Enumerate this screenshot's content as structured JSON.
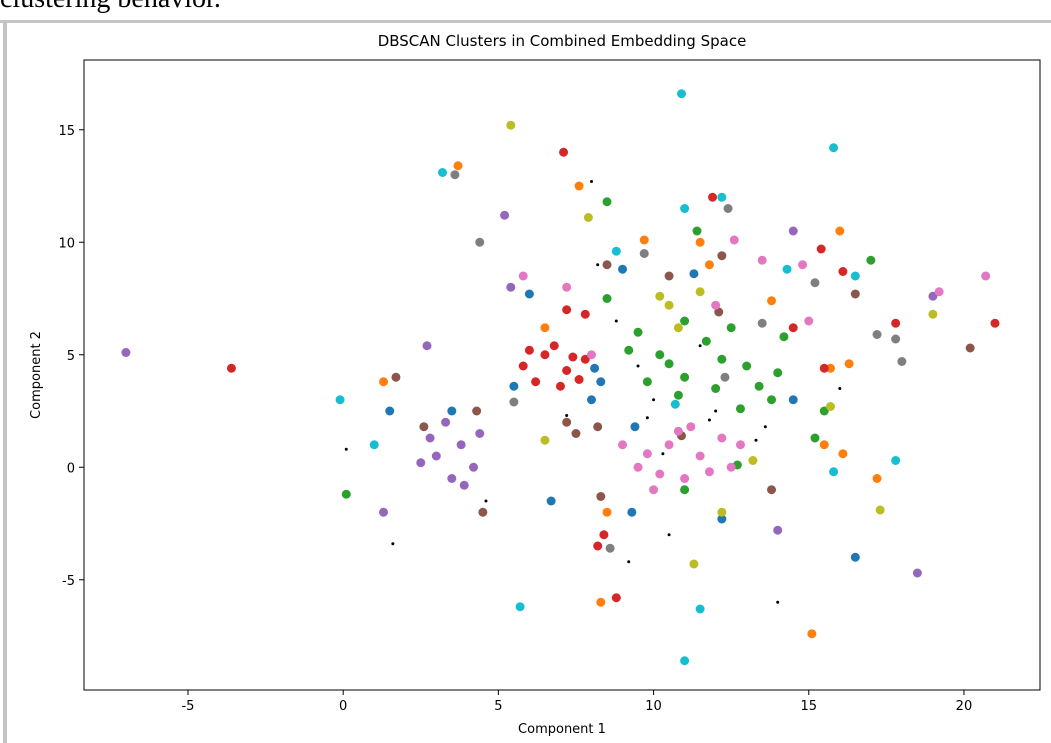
{
  "caption": "clustering behavior.",
  "chart_data": {
    "type": "scatter",
    "title": "DBSCAN Clusters in Combined Embedding Space",
    "x_label": "Component 1",
    "y_label": "Component 2",
    "xlim": [
      -8.35,
      22.45
    ],
    "ylim": [
      -9.9,
      18.1
    ],
    "xticks": [
      -5,
      0,
      5,
      10,
      15,
      20
    ],
    "yticks": [
      -5,
      0,
      5,
      10,
      15
    ],
    "series": [
      {
        "color": "#000000",
        "x": [
          8,
          8.2,
          9.5,
          10,
          12,
          14,
          0.1,
          1.6,
          13.3,
          9.2,
          10.5,
          16,
          4.6,
          7.2,
          11.5,
          8.8,
          9.8,
          11.8,
          13.6,
          10.3
        ],
        "y": [
          12.7,
          9,
          4.5,
          3,
          2.5,
          -6,
          0.8,
          -3.4,
          1.2,
          -4.2,
          -3,
          3.5,
          -1.5,
          2.3,
          5.4,
          6.5,
          2.2,
          2.1,
          1.8,
          0.6
        ]
      },
      {
        "color": "#1f77b4",
        "x": [
          8.1,
          8,
          9,
          9.3,
          6,
          11.3,
          14.5,
          16.5,
          3.5,
          12.2,
          5.5,
          9.4,
          6.7,
          1.5,
          8.3
        ],
        "y": [
          4.4,
          3,
          8.8,
          -2,
          7.7,
          8.6,
          3,
          -4,
          2.5,
          -2.3,
          3.6,
          1.8,
          -1.5,
          2.5,
          3.8
        ]
      },
      {
        "color": "#ff7f0e",
        "x": [
          3.7,
          15.7,
          16.3,
          15.5,
          8.5,
          16,
          8.3,
          6.5,
          7.6,
          15.1,
          9.7,
          11.5,
          1.3,
          13.8,
          17.2,
          11.8,
          16.1
        ],
        "y": [
          13.4,
          4.4,
          4.6,
          1,
          -2,
          10.5,
          -6,
          6.2,
          12.5,
          -7.4,
          10.1,
          10,
          3.8,
          7.4,
          -0.5,
          9,
          0.6
        ]
      },
      {
        "color": "#2ca02c",
        "x": [
          10.2,
          11,
          12,
          13,
          13.8,
          12.5,
          9.5,
          8.5,
          11,
          14.2,
          0.1,
          11.4,
          17,
          15.5,
          12.7,
          11,
          8.5,
          15.2,
          9.8,
          10.8,
          12.2,
          13.4,
          11.7,
          14,
          9.2,
          10.5,
          12.8
        ],
        "y": [
          5,
          4,
          3.5,
          4.5,
          3,
          6.2,
          6,
          7.5,
          6.5,
          5.8,
          -1.2,
          10.5,
          9.2,
          2.5,
          0.1,
          -1,
          11.8,
          1.3,
          3.8,
          3.2,
          4.8,
          3.6,
          5.6,
          4.2,
          5.2,
          4.6,
          2.6
        ]
      },
      {
        "color": "#d62728",
        "x": [
          5.8,
          6.5,
          7.2,
          7.8,
          6.2,
          7,
          7.6,
          6.8,
          -3.6,
          7.2,
          7.8,
          11.9,
          14.5,
          8.4,
          8.2,
          15.4,
          21,
          7.1,
          16.1,
          17.8,
          8.8,
          15.5,
          6,
          7.4
        ],
        "y": [
          4.5,
          5,
          4.3,
          4.8,
          3.8,
          3.6,
          3.9,
          5.4,
          4.4,
          7,
          6.8,
          12,
          6.2,
          -3,
          -3.5,
          9.7,
          6.4,
          14,
          8.7,
          6.4,
          -5.8,
          4.4,
          5.2,
          4.9
        ]
      },
      {
        "color": "#9467bd",
        "x": [
          3,
          3.8,
          4.2,
          3.5,
          2.8,
          4.4,
          3.3,
          -7,
          5.2,
          2.7,
          19,
          14.5,
          5.4,
          1.3,
          18.5,
          14,
          3.9,
          2.5
        ],
        "y": [
          0.5,
          1,
          0,
          -0.5,
          1.3,
          1.5,
          2,
          5.1,
          11.2,
          5.4,
          7.6,
          10.5,
          8,
          -2,
          -4.7,
          -2.8,
          -0.8,
          0.2
        ]
      },
      {
        "color": "#8c564b",
        "x": [
          7.5,
          8.2,
          4.3,
          12.2,
          8.5,
          16.5,
          10.5,
          12.1,
          8.3,
          10.9,
          20.2,
          2.6,
          1.7,
          4.5,
          13.8,
          7.2
        ],
        "y": [
          1.5,
          1.8,
          2.5,
          9.4,
          9,
          7.7,
          8.5,
          6.9,
          -1.3,
          1.4,
          5.3,
          1.8,
          4,
          -2,
          -1,
          2
        ]
      },
      {
        "color": "#e377c2",
        "x": [
          9.5,
          10.5,
          11.5,
          12.2,
          10,
          11,
          12.5,
          9,
          8,
          7.2,
          13.5,
          14.8,
          19.2,
          12,
          15,
          12.6,
          5.8,
          20.7,
          10.8,
          11.8,
          9.8,
          11.2,
          12.8,
          10.2
        ],
        "y": [
          0,
          1,
          0.5,
          1.3,
          -1,
          -0.5,
          0,
          1,
          5,
          8,
          9.2,
          9,
          7.8,
          7.2,
          6.5,
          10.1,
          8.5,
          8.5,
          1.6,
          -0.2,
          0.6,
          1.8,
          1,
          -0.3
        ]
      },
      {
        "color": "#7f7f7f",
        "x": [
          17.2,
          17.8,
          8.6,
          3.6,
          12.4,
          15.2,
          18,
          13.5,
          4.4,
          9.7,
          5.5,
          12.3
        ],
        "y": [
          5.9,
          5.7,
          -3.6,
          13,
          11.5,
          8.2,
          4.7,
          6.4,
          10,
          9.5,
          2.9,
          4
        ]
      },
      {
        "color": "#bcbd22",
        "x": [
          10.5,
          10.8,
          11.5,
          12.2,
          13.2,
          11.3,
          7.9,
          19,
          17.3,
          15.7,
          6.5,
          5.4,
          10.2
        ],
        "y": [
          7.2,
          6.2,
          7.8,
          -2,
          0.3,
          -4.3,
          11.1,
          6.8,
          -1.9,
          2.7,
          1.2,
          15.2,
          7.6
        ]
      },
      {
        "color": "#17becf",
        "x": [
          10.9,
          15.8,
          -0.1,
          3.2,
          12.2,
          11,
          11.5,
          8.8,
          11,
          14.3,
          16.5,
          17.8,
          5.7,
          10.7,
          15.8,
          1
        ],
        "y": [
          16.6,
          14.2,
          3,
          13.1,
          12,
          -8.6,
          -6.3,
          9.6,
          11.5,
          8.8,
          8.5,
          0.3,
          -6.2,
          2.8,
          -0.2,
          1
        ]
      }
    ]
  }
}
